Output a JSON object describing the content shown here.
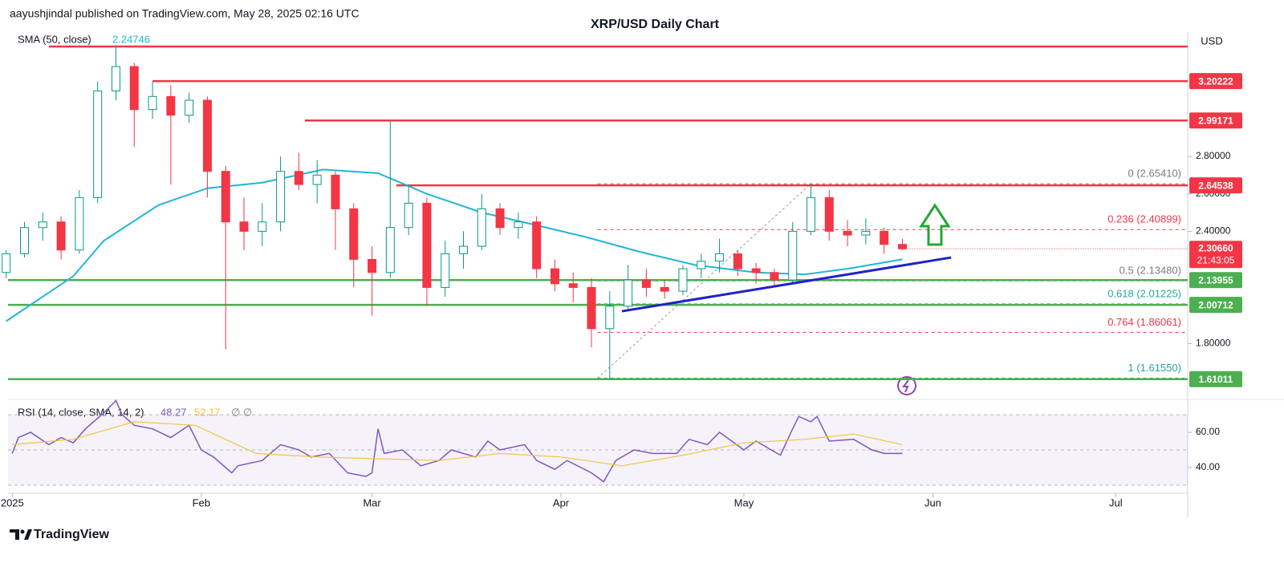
{
  "header": {
    "published": "aayushjindal published on TradingView.com, May 28, 2025 02:16 UTC",
    "title": "XRP/USD Daily Chart",
    "logo": "TradingView"
  },
  "chart_data": [
    {
      "type": "candlestick",
      "currency": "USD",
      "sma_label": "SMA (50, close)",
      "sma_value": 2.24746,
      "xlim": [
        -0.7,
        192.8
      ],
      "ylim": [
        1.515,
        3.464
      ],
      "xticks": [
        {
          "value": 0,
          "label": "2025"
        },
        {
          "value": 31,
          "label": "Feb"
        },
        {
          "value": 59,
          "label": "Mar"
        },
        {
          "value": 90,
          "label": "Apr"
        },
        {
          "value": 120,
          "label": "May"
        },
        {
          "value": 151,
          "label": "Jun"
        },
        {
          "value": 181,
          "label": "Jul"
        }
      ],
      "yticks": [
        {
          "value": 1.8,
          "label": "1.80000"
        },
        {
          "value": 2.4,
          "label": "2.40000"
        },
        {
          "value": 2.6,
          "label": "2.60000"
        },
        {
          "value": 2.8,
          "label": "2.80000"
        }
      ],
      "up_color": "#089981",
      "down_color": "#f23645",
      "x": [
        -1,
        2,
        5,
        8,
        11,
        14,
        17,
        20,
        23,
        26,
        29,
        32,
        35,
        38,
        41,
        44,
        47,
        50,
        53,
        56,
        59,
        62,
        65,
        68,
        71,
        74,
        77,
        80,
        83,
        86,
        89,
        92,
        95,
        98,
        101,
        104,
        107,
        110,
        113,
        116,
        119,
        122,
        125,
        128,
        131,
        134,
        137,
        140,
        143,
        146
      ],
      "open": [
        2.18,
        2.28,
        2.42,
        2.45,
        2.3,
        2.58,
        3.15,
        3.28,
        3.05,
        3.12,
        3.02,
        3.1,
        2.72,
        2.45,
        2.4,
        2.45,
        2.72,
        2.65,
        2.7,
        2.52,
        2.25,
        2.18,
        2.42,
        2.55,
        2.1,
        2.28,
        2.32,
        2.52,
        2.42,
        2.45,
        2.2,
        2.12,
        2.1,
        1.88,
        2.0,
        2.14,
        2.1,
        2.08,
        2.2,
        2.24,
        2.28,
        2.2,
        2.18,
        2.14,
        2.4,
        2.58,
        2.4,
        2.38,
        2.4,
        2.33
      ],
      "high": [
        2.3,
        2.45,
        2.5,
        2.48,
        2.62,
        3.2,
        3.39,
        3.3,
        3.2,
        3.18,
        3.14,
        3.12,
        2.75,
        2.58,
        2.55,
        2.8,
        2.82,
        2.78,
        2.72,
        2.55,
        2.32,
        2.99,
        2.65,
        2.58,
        2.35,
        2.4,
        2.6,
        2.55,
        2.5,
        2.48,
        2.25,
        2.18,
        2.15,
        2.08,
        2.22,
        2.2,
        2.14,
        2.22,
        2.28,
        2.36,
        2.3,
        2.23,
        2.2,
        2.45,
        2.654,
        2.62,
        2.46,
        2.47,
        2.42,
        2.36
      ],
      "low": [
        2.15,
        2.26,
        2.35,
        2.25,
        2.28,
        2.55,
        3.1,
        2.85,
        3.0,
        2.65,
        2.98,
        2.58,
        1.77,
        2.3,
        2.32,
        2.4,
        2.62,
        2.55,
        2.3,
        2.1,
        1.95,
        2.15,
        2.38,
        2.0,
        2.05,
        2.2,
        2.3,
        2.38,
        2.36,
        2.15,
        2.08,
        2.02,
        1.78,
        1.61,
        1.98,
        2.05,
        2.04,
        2.06,
        2.15,
        2.18,
        2.16,
        2.12,
        2.1,
        2.12,
        2.38,
        2.35,
        2.32,
        2.33,
        2.28,
        2.3
      ],
      "close": [
        2.28,
        2.42,
        2.45,
        2.3,
        2.58,
        3.15,
        3.28,
        3.05,
        3.12,
        3.02,
        3.1,
        2.72,
        2.45,
        2.4,
        2.45,
        2.72,
        2.65,
        2.7,
        2.52,
        2.25,
        2.18,
        2.42,
        2.55,
        2.1,
        2.28,
        2.32,
        2.52,
        2.42,
        2.45,
        2.2,
        2.12,
        2.1,
        1.88,
        2.0,
        2.14,
        2.1,
        2.08,
        2.2,
        2.24,
        2.28,
        2.2,
        2.18,
        2.14,
        2.4,
        2.58,
        2.4,
        2.38,
        2.4,
        2.33,
        2.3066
      ],
      "last_price": {
        "value": 2.3066,
        "label": "2.30660",
        "countdown": "21:43:05"
      },
      "sma": {
        "color": "#22b5d8",
        "x": [
          -1,
          10,
          15,
          24,
          32,
          41,
          51,
          60,
          68,
          77,
          85,
          94,
          103,
          112,
          122,
          130,
          137,
          146
        ],
        "values": [
          1.92,
          2.16,
          2.35,
          2.54,
          2.63,
          2.66,
          2.73,
          2.71,
          2.6,
          2.5,
          2.44,
          2.37,
          2.29,
          2.22,
          2.18,
          2.17,
          2.2,
          2.25
        ]
      },
      "levels": [
        {
          "value": 3.387,
          "x0": 6,
          "color": "#f23645",
          "boxed": false
        },
        {
          "value": 3.20222,
          "x0": 23,
          "color": "#f23645",
          "boxed": true
        },
        {
          "value": 2.99171,
          "x0": 48,
          "color": "#f23645",
          "boxed": true
        },
        {
          "value": 2.64538,
          "x0": 63,
          "color": "#f23645",
          "boxed": true
        },
        {
          "value": 2.13955,
          "x0": -0.7,
          "color": "#4caf50",
          "boxed": true
        },
        {
          "value": 2.00712,
          "x0": -0.7,
          "color": "#4caf50",
          "boxed": true
        },
        {
          "value": 1.61011,
          "x0": -0.7,
          "color": "#4caf50",
          "boxed": true
        }
      ],
      "fib": {
        "x0": 96,
        "x1": 131,
        "levels": [
          {
            "label": "0 (2.65410)",
            "value": 2.6541,
            "color": "#787b86"
          },
          {
            "label": "0.236 (2.40899)",
            "value": 2.40899,
            "color": "#f23645"
          },
          {
            "label": "0.5 (2.13480)",
            "value": 2.1348,
            "color": "#787b86"
          },
          {
            "label": "0.618 (2.01225)",
            "value": 2.01225,
            "color": "#26a69a"
          },
          {
            "label": "0.764 (1.86061)",
            "value": 1.86061,
            "color": "#f23645"
          },
          {
            "label": "1 (1.61550)",
            "value": 1.6155,
            "color": "#26a69a"
          }
        ]
      },
      "trendline": {
        "x": [
          100,
          154
        ],
        "y": [
          1.973,
          2.26
        ],
        "color": "#1e22c8"
      }
    },
    {
      "type": "line",
      "title": "RSI (14, close, SMA, 14, 2)",
      "rsi_value": 48.27,
      "sma_value": 52.17,
      "extra": "∅ ∅",
      "ylim": [
        27.7,
        75.5
      ],
      "yticks": [
        {
          "value": 40,
          "label": "40.00"
        },
        {
          "value": 60,
          "label": "60.00"
        }
      ],
      "band": [
        30,
        50,
        70
      ],
      "series": [
        {
          "name": "RSI",
          "color": "#7e57c2",
          "x": [
            0,
            1,
            3,
            6,
            8,
            10,
            12,
            15,
            17,
            18,
            20,
            23,
            26,
            29,
            31,
            33,
            36,
            37,
            41,
            44,
            47,
            49,
            52,
            55,
            58,
            59,
            60,
            61,
            64,
            67,
            70,
            72,
            76,
            78,
            80,
            84,
            86,
            89,
            91,
            95,
            97,
            99,
            102,
            105,
            109,
            111,
            114,
            116,
            120,
            122,
            126,
            128,
            129,
            131,
            132,
            134,
            138,
            141,
            143,
            146
          ],
          "values": [
            48,
            57,
            60,
            53,
            57,
            54,
            62,
            71,
            78,
            70,
            64,
            62,
            57,
            64,
            50,
            46,
            37,
            41,
            44,
            53,
            50,
            46,
            48,
            37,
            35,
            37,
            62,
            48,
            50,
            41,
            44,
            50,
            46,
            55,
            50,
            53,
            44,
            39,
            44,
            37,
            32,
            44,
            50,
            48,
            48,
            56,
            53,
            60,
            50,
            55,
            47,
            62,
            69,
            66,
            69,
            55,
            56,
            50,
            48,
            48
          ]
        },
        {
          "name": "SMA",
          "color": "#f5c342",
          "x": [
            0,
            10,
            20,
            30,
            40,
            50,
            60,
            70,
            80,
            90,
            100,
            110,
            120,
            130,
            138,
            146
          ],
          "values": [
            53,
            56,
            66,
            64,
            48,
            46,
            45,
            44,
            48,
            46,
            41,
            47,
            54,
            56,
            59,
            53
          ]
        }
      ]
    }
  ]
}
